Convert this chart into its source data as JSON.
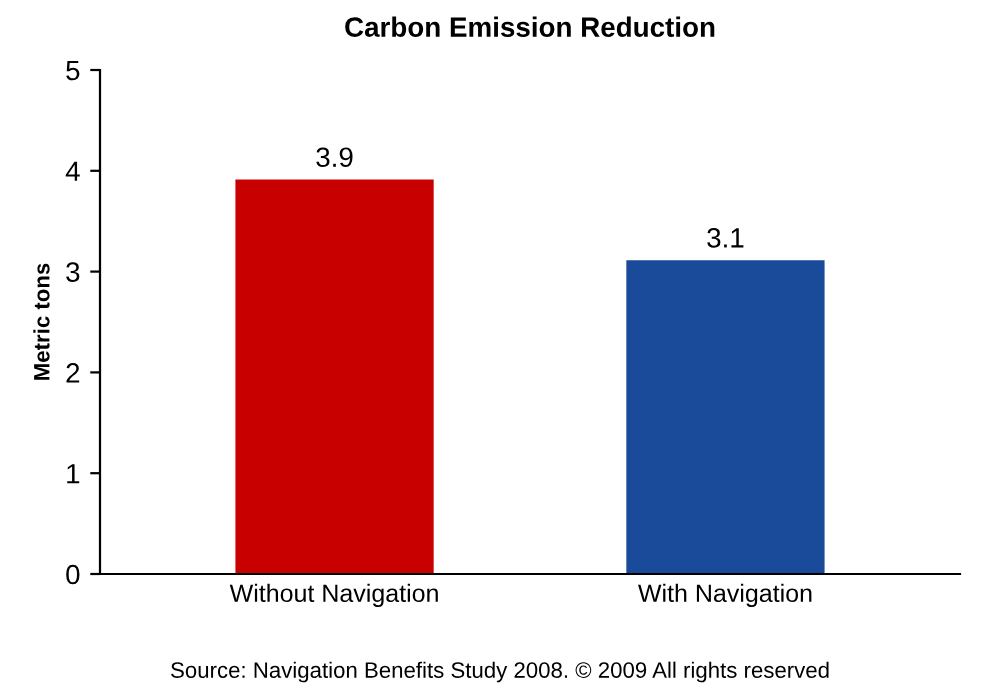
{
  "chart_data": {
    "type": "bar",
    "title": "Carbon Emission Reduction",
    "ylabel": "Metric tons",
    "categories": [
      "Without Navigation",
      "With Navigation"
    ],
    "values": [
      3.9,
      3.1
    ],
    "colors": [
      "#c80000",
      "#1a4a9a"
    ],
    "ylim": [
      0,
      5
    ],
    "yticks": [
      0,
      1,
      2,
      3,
      4,
      5
    ],
    "grid": false,
    "data_labels": true,
    "annotations": [
      "Source: Navigation Benefits Study 2008. © 2009 All rights reserved"
    ]
  }
}
